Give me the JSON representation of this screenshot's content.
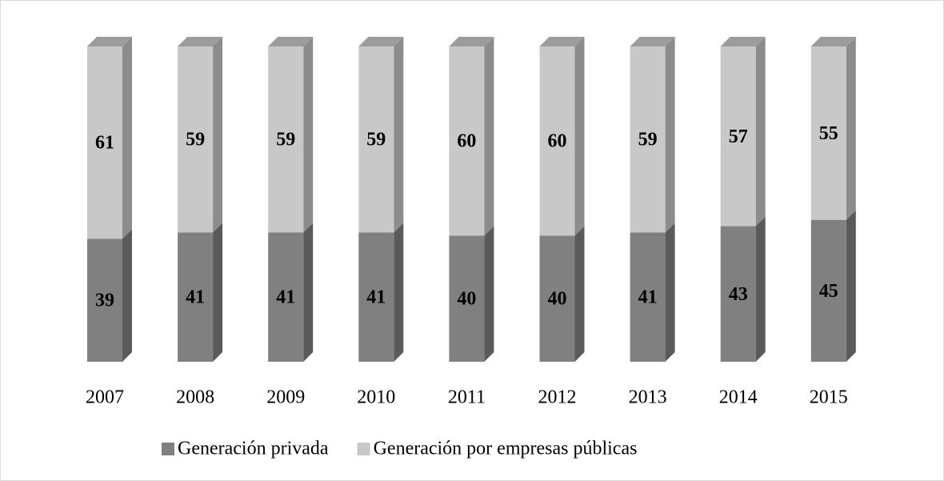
{
  "chart_data": {
    "type": "bar",
    "stacked": true,
    "categories": [
      "2007",
      "2008",
      "2009",
      "2010",
      "2011",
      "2012",
      "2013",
      "2014",
      "2015"
    ],
    "series": [
      {
        "name": "Generación privada",
        "color": "#808080",
        "values": [
          39,
          41,
          41,
          41,
          40,
          40,
          41,
          43,
          45
        ]
      },
      {
        "name": "Generación por empresas públicas",
        "color": "#c8c8c8",
        "values": [
          61,
          59,
          59,
          59,
          60,
          60,
          59,
          57,
          55
        ]
      }
    ],
    "ylim": [
      0,
      100
    ]
  }
}
